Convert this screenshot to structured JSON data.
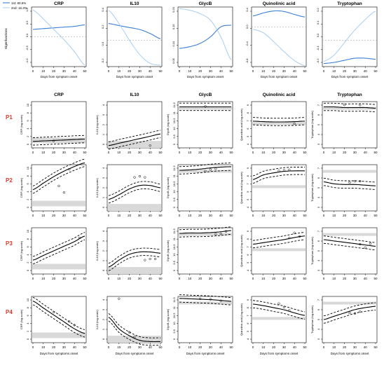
{
  "figure": {
    "columns": [
      "CRP",
      "IL10",
      "GlycB",
      "Quinolinic acid",
      "Tryptophan"
    ],
    "row_labels": [
      "P1",
      "P2",
      "P3",
      "P4"
    ],
    "top_xlabel": "Days from symptom onset",
    "grid_xlabel": "Days from symptoms onset",
    "top_ylabel": "Eigenfunctions",
    "ylabels": [
      "CRP (log-scale)",
      "IL10 (log-scale)",
      "GlycB (log-scale)",
      "Quinolinic acid (log-scale)",
      "Tryptophan (log-scale)"
    ],
    "legend": [
      "1st: 80.6%",
      "2nd: 16.3%"
    ],
    "colors": {
      "first": "#3a7fd5",
      "second": "#9fc9ef",
      "band": "#d9d9d9",
      "fit": "#000000",
      "row_label": "#d93a2b"
    }
  },
  "chart_data": [
    {
      "type": "line",
      "panel": "eigenfunctions",
      "x": [
        0,
        10,
        20,
        30,
        40,
        50
      ],
      "xlabel": "Days from symptom onset",
      "ylabel": "Eigenfunctions",
      "series": [
        {
          "name": "1st: 80.6%",
          "columns": {
            "CRP": [
              0.05,
              0.055,
              0.06,
              0.065,
              0.07,
              0.08
            ],
            "IL10": [
              0.25,
              0.22,
              0.19,
              0.16,
              0.1,
              0.02
            ],
            "GlycB": [
              0.085,
              0.09,
              0.1,
              0.12,
              0.15,
              0.155
            ],
            "Quinolinic acid": [
              0.22,
              0.28,
              0.32,
              0.31,
              0.25,
              0.2
            ],
            "Tryptophan": [
              -0.22,
              -0.21,
              -0.19,
              -0.17,
              -0.17,
              -0.18
            ]
          }
        },
        {
          "name": "2nd: 16.3%",
          "columns": {
            "CRP": [
              0.18,
              0.12,
              0.05,
              -0.02,
              -0.1,
              -0.19
            ],
            "IL10": [
              0.45,
              0.25,
              0.0,
              -0.22,
              -0.35,
              -0.38
            ],
            "GlycB": [
              0.205,
              0.2,
              0.19,
              0.17,
              0.12,
              0.05
            ],
            "Quinolinic acid": [
              -0.05,
              -0.12,
              -0.3,
              -0.5,
              -0.68,
              -0.78
            ],
            "Tryptophan": [
              -0.2,
              -0.14,
              -0.02,
              0.1,
              0.2,
              0.28
            ]
          }
        }
      ]
    },
    {
      "type": "line",
      "panel": "patient-fits",
      "x": [
        0,
        10,
        20,
        30,
        40,
        50
      ],
      "xlabel": "Days from symptoms onset",
      "ylims": {
        "CRP": [
          0,
          10
        ],
        "IL10": [
          0,
          4
        ],
        "GlycB": [
          0,
          11.5
        ],
        "Quinolinic acid": [
          0,
          9
        ],
        "Tryptophan": [
          0,
          7
        ]
      },
      "yticks": {
        "CRP": [
          0,
          2,
          4,
          6,
          8,
          10
        ],
        "IL10": [
          0,
          1,
          2,
          3,
          4
        ],
        "GlycB": [
          9.0,
          9.5,
          10.0,
          10.5,
          11.0,
          11.5
        ],
        "Quinolinic acid": [
          4,
          5,
          6,
          7,
          8,
          9
        ],
        "Tryptophan": [
          3,
          4,
          5,
          6,
          7
        ]
      },
      "normal_band": {
        "CRP": [
          1.0,
          2.2
        ],
        "IL10": [
          0.0,
          0.6
        ],
        "GlycB": [
          10.0,
          10.2
        ],
        "Quinolinic acid": [
          4.7,
          5.0
        ],
        "Tryptophan": [
          5.8,
          6.2
        ]
      },
      "rows": [
        {
          "label": "P1",
          "fits": {
            "CRP": [
              1.4,
              1.5,
              1.6,
              1.7,
              1.8,
              1.9
            ],
            "IL10": [
              0.2,
              0.4,
              0.6,
              0.8,
              1.0,
              1.2
            ],
            "GlycB": [
              10.2,
              10.2,
              10.2,
              10.2,
              10.2,
              10.2
            ],
            "Quinolinic acid": [
              5.2,
              5.1,
              5.05,
              5.05,
              5.1,
              5.2
            ],
            "Tryptophan": [
              6.2,
              6.2,
              6.1,
              6.1,
              6.1,
              6.0
            ]
          },
          "points": {
            "CRP": [
              [
                20,
                1.5
              ]
            ],
            "IL10": [
              [
                40,
                0.2
              ]
            ],
            "GlycB": [
              [
                25,
                10.3
              ]
            ],
            "Quinolinic acid": [
              [
                40,
                4.7
              ]
            ],
            "Tryptophan": [
              [
                20,
                6.5
              ],
              [
                35,
                6.5
              ]
            ]
          }
        },
        {
          "label": "P2",
          "fits": {
            "CRP": [
              4.6,
              6.0,
              7.4,
              8.6,
              9.6,
              10.4
            ],
            "IL10": [
              1.0,
              1.4,
              1.9,
              2.2,
              2.2,
              2.0
            ],
            "GlycB": [
              10.1,
              10.2,
              10.4,
              10.7,
              10.9,
              11.0
            ],
            "Quinolinic acid": [
              6.1,
              7.0,
              7.4,
              7.7,
              7.8,
              7.8
            ],
            "Tryptophan": [
              4.4,
              4.1,
              4.0,
              4.0,
              3.9,
              3.8
            ]
          },
          "points": {
            "CRP": [
              [
                25,
                5.4
              ],
              [
                30,
                4.0
              ],
              [
                35,
                9.0
              ]
            ],
            "IL10": [
              [
                25,
                2.9
              ],
              [
                30,
                3.0
              ],
              [
                35,
                2.9
              ]
            ],
            "GlycB": [
              [
                25,
                9.9
              ],
              [
                30,
                10.3
              ],
              [
                35,
                10.5
              ]
            ],
            "Quinolinic acid": [
              [
                25,
                7.8
              ],
              [
                30,
                7.9
              ],
              [
                35,
                8.0
              ]
            ],
            "Tryptophan": [
              [
                25,
                4.3
              ],
              [
                30,
                4.5
              ],
              [
                35,
                4.5
              ]
            ]
          }
        },
        {
          "label": "P3",
          "fits": {
            "CRP": [
              3.0,
              4.0,
              5.0,
              6.0,
              7.0,
              8.2
            ],
            "IL10": [
              0.6,
              1.2,
              1.7,
              1.9,
              1.9,
              1.8
            ],
            "GlycB": [
              10.1,
              10.2,
              10.2,
              10.3,
              10.5,
              10.8
            ],
            "Quinolinic acid": [
              5.8,
              6.1,
              6.4,
              6.7,
              7.1,
              7.4
            ],
            "Tryptophan": [
              5.2,
              5.0,
              4.8,
              4.6,
              4.4,
              4.2
            ]
          },
          "points": {
            "CRP": [
              [
                45,
                7.8
              ]
            ],
            "IL10": [
              [
                35,
                1.2
              ],
              [
                40,
                1.3
              ],
              [
                45,
                1.3
              ]
            ],
            "GlycB": [
              [
                35,
                9.9
              ],
              [
                40,
                10.0
              ],
              [
                45,
                10.6
              ]
            ],
            "Quinolinic acid": [
              [
                35,
                7.0
              ],
              [
                40,
                8.0
              ],
              [
                45,
                7.3
              ]
            ],
            "Tryptophan": [
              [
                35,
                4.5
              ],
              [
                40,
                4.0
              ],
              [
                45,
                4.6
              ]
            ]
          }
        },
        {
          "label": "P4",
          "fits": {
            "CRP": [
              9.0,
              7.5,
              6.0,
              4.5,
              3.0,
              2.0
            ],
            "IL10": [
              2.2,
              1.2,
              0.6,
              0.2,
              0.1,
              0.1
            ],
            "GlycB": [
              11.0,
              10.9,
              10.8,
              10.7,
              10.5,
              10.3
            ],
            "Quinolinic acid": [
              7.5,
              7.2,
              6.8,
              6.4,
              5.8,
              5.3
            ],
            "Tryptophan": [
              3.5,
              4.0,
              4.5,
              5.0,
              5.3,
              5.5
            ]
          },
          "points": {
            "CRP": [
              [
                20,
                6.6
              ],
              [
                35,
                4.6
              ],
              [
                40,
                3.8
              ]
            ],
            "IL10": [
              [
                10,
                3.8
              ],
              [
                20,
                0.9
              ],
              [
                25,
                0.5
              ]
            ],
            "GlycB": [
              [
                20,
                10.9
              ],
              [
                30,
                10.8
              ],
              [
                40,
                10.4
              ]
            ],
            "Quinolinic acid": [
              [
                25,
                7.6
              ],
              [
                30,
                6.9
              ],
              [
                35,
                6.3
              ]
            ],
            "Tryptophan": [
              [
                25,
                4.5
              ],
              [
                30,
                4.4
              ],
              [
                35,
                4.7
              ]
            ]
          }
        }
      ]
    }
  ]
}
